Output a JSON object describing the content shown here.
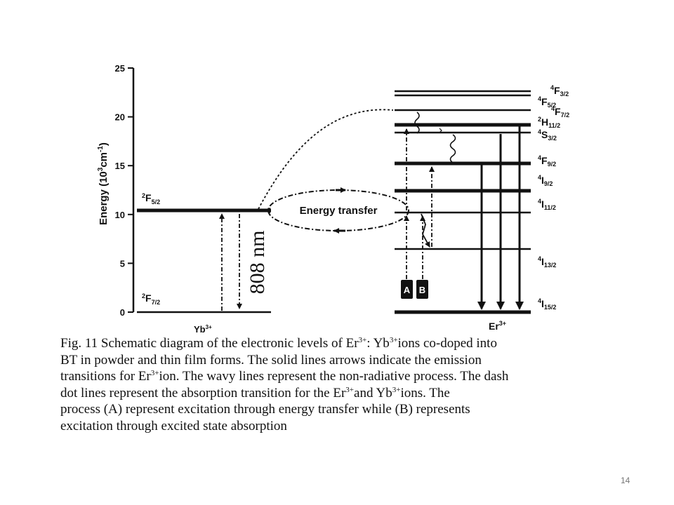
{
  "diagram": {
    "y_axis": {
      "label_main": "Energy (10",
      "label_sup": "3",
      "label_unit": "cm",
      "label_unit_sup": "-1",
      "label_close": ")",
      "ticks": [
        "0",
        "5",
        "10",
        "15",
        "20",
        "25"
      ],
      "range": [
        0,
        25
      ]
    },
    "yb_levels": [
      {
        "term": "F",
        "mult": "2",
        "j": "5/2",
        "energy": 10.4
      },
      {
        "term": "F",
        "mult": "2",
        "j": "7/2",
        "energy": 0
      }
    ],
    "yb_label": {
      "text": "Yb",
      "sup": "3+"
    },
    "er_label": {
      "text": "Er",
      "sup": "3+"
    },
    "er_levels": [
      {
        "term": "F",
        "mult": "4",
        "j": "3/2",
        "energy": 22.5
      },
      {
        "term": "F",
        "mult": "4",
        "j": "5/2",
        "energy": 22.2
      },
      {
        "term": "F",
        "mult": "4",
        "j": "7/2",
        "energy": 20.6
      },
      {
        "term": "H",
        "mult": "2",
        "j": "11/2",
        "energy": 19.2
      },
      {
        "term": "S",
        "mult": "4",
        "j": "3/2",
        "energy": 18.4
      },
      {
        "term": "F",
        "mult": "4",
        "j": "9/2",
        "energy": 15.3
      },
      {
        "term": "I",
        "mult": "4",
        "j": "9/2",
        "energy": 12.4
      },
      {
        "term": "I",
        "mult": "4",
        "j": "11/2",
        "energy": 10.2
      },
      {
        "term": "I",
        "mult": "4",
        "j": "13/2",
        "energy": 6.5
      },
      {
        "term": "I",
        "mult": "4",
        "j": "15/2",
        "energy": 0
      }
    ],
    "pump_label": "808 nm",
    "energy_transfer_label": "Energy transfer",
    "process_a_label": "A",
    "process_b_label": "B"
  },
  "caption": {
    "line1_a": "Fig. 11 Schematic diagram of the electronic levels of Er",
    "line1_sup1": "3+",
    "line1_b": ": Yb",
    "line1_sup2": "3+",
    "line1_c": "ions co-doped into",
    "line2": "BT in powder and thin film forms. The solid lines arrows indicate the emission",
    "line3_a": "transitions for Er",
    "line3_sup": "3+",
    "line3_b": "ion. The wavy lines represent the non-radiative process. The dash",
    "line4_a": "dot lines represent the absorption transition for the Er",
    "line4_sup1": "3+",
    "line4_b": "and Yb",
    "line4_sup2": "3+",
    "line4_c": "ions. The",
    "line5": "process (A) represent excitation through energy transfer while (B) represents",
    "line6": "excitation through excited state absorption"
  },
  "page_number": "14"
}
